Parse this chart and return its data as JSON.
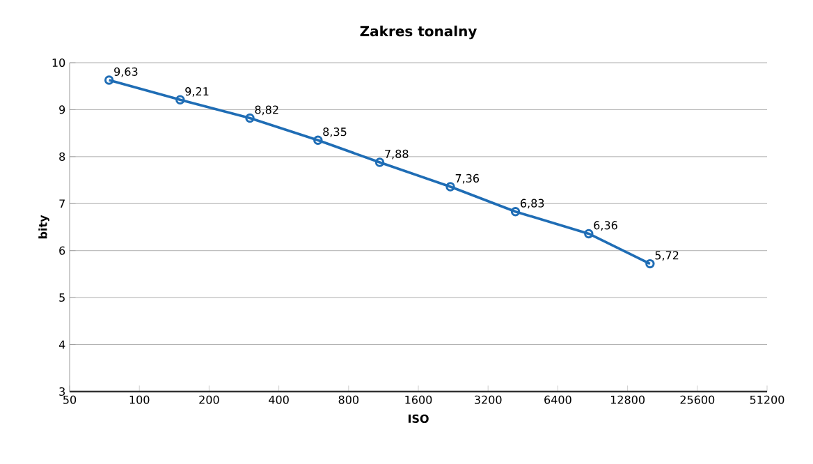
{
  "chart_data": {
    "type": "line",
    "title": "Zakres tonalny",
    "xlabel": "ISO",
    "ylabel": "bity",
    "x": [
      74,
      150,
      300,
      590,
      1090,
      2200,
      4200,
      8700,
      16000
    ],
    "values": [
      9.63,
      9.21,
      8.82,
      8.35,
      7.88,
      7.36,
      6.83,
      6.36,
      5.72
    ],
    "value_labels": [
      "9,63",
      "9,21",
      "8,82",
      "8,35",
      "7,88",
      "7,36",
      "6,83",
      "6,36",
      "5,72"
    ],
    "color": "#1f6db5",
    "marker": "circle",
    "log": "x",
    "grid": "y",
    "xlim": [
      50,
      51200
    ],
    "xticks": [
      50,
      100,
      200,
      400,
      800,
      1600,
      3200,
      6400,
      12800,
      25600,
      51200
    ],
    "ylim": [
      3,
      10
    ],
    "yticks": [
      3,
      4,
      5,
      6,
      7,
      8,
      9,
      10
    ]
  }
}
